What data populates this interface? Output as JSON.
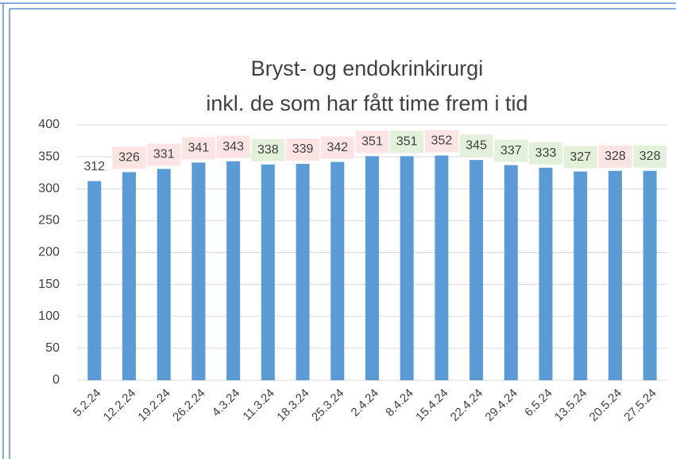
{
  "chart_data": {
    "type": "bar",
    "title": [
      "Bryst- og endokrinkirurgi",
      "inkl. de som har fått time frem i tid"
    ],
    "categories": [
      "5.2.24",
      "12.2.24",
      "19.2.24",
      "26.2.24",
      "4.3.24",
      "11.3.24",
      "18.3.24",
      "25.3.24",
      "2.4.24",
      "8.4.24",
      "15.4.24",
      "22.4.24",
      "29.4.24",
      "6.5.24",
      "13.5.24",
      "20.5.24",
      "27.5.24"
    ],
    "values": [
      312,
      326,
      331,
      341,
      343,
      338,
      339,
      342,
      351,
      351,
      352,
      345,
      337,
      333,
      327,
      328,
      328
    ],
    "label_colors": [
      null,
      "#fde4e4",
      "#fde4e4",
      "#fde4e4",
      "#fde4e4",
      "#e3f0da",
      "#fde4e4",
      "#fde4e4",
      "#fde4e4",
      "#e3f0da",
      "#fde4e4",
      "#e3f0da",
      "#e3f0da",
      "#e3f0da",
      "#e3f0da",
      "#fde4e4",
      "#e3f0da"
    ],
    "color": "#5b9bd5",
    "ylim": [
      0,
      400
    ],
    "yticks": [
      0,
      50,
      100,
      150,
      200,
      250,
      300,
      350,
      400
    ],
    "grid": true
  }
}
